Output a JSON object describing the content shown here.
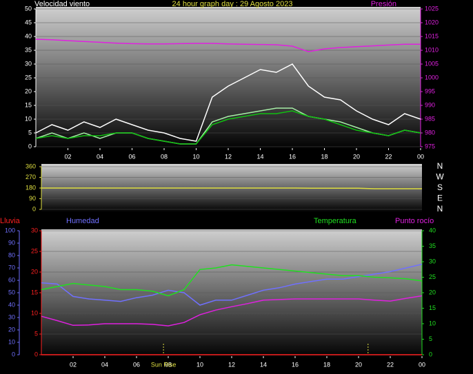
{
  "chart_data": [
    {
      "type": "line",
      "title": "Velocidad viento",
      "subtitle": "24 hour graph day : 29 Agosto 2023",
      "y2label": "Presión",
      "x": [
        0,
        1,
        2,
        3,
        4,
        5,
        6,
        7,
        8,
        9,
        10,
        11,
        12,
        13,
        14,
        15,
        16,
        17,
        18,
        19,
        20,
        21,
        22,
        23,
        24
      ],
      "xlim": [
        0,
        24
      ],
      "xticks": [
        {
          "value": 2,
          "label": "02"
        },
        {
          "value": 4,
          "label": "04"
        },
        {
          "value": 6,
          "label": "06"
        },
        {
          "value": 8,
          "label": "08"
        },
        10,
        12,
        14,
        16,
        18,
        20,
        22,
        {
          "value": 24,
          "label": "00"
        }
      ],
      "ylim": [
        0,
        50
      ],
      "yticks": [
        0,
        5,
        10,
        15,
        20,
        25,
        30,
        35,
        40,
        45,
        50
      ],
      "y2lim": [
        975,
        1025
      ],
      "y2ticks": [
        975,
        980,
        985,
        990,
        995,
        1000,
        1005,
        1010,
        1015,
        1020,
        1025
      ],
      "grid": true,
      "series": [
        {
          "color": "#ffffff",
          "values": [
            5,
            8,
            6,
            9,
            7,
            10,
            8,
            6,
            5,
            3,
            2,
            18,
            22,
            25,
            28,
            27,
            30,
            22,
            18,
            17,
            13,
            10,
            8,
            12,
            10
          ]
        },
        {
          "color": "#a8f0a8",
          "values": [
            3,
            5,
            3,
            5,
            3,
            5,
            5,
            3,
            2,
            1,
            1,
            9,
            11,
            12,
            13,
            14,
            14,
            11,
            10,
            9,
            7,
            5,
            4,
            6,
            5
          ]
        },
        {
          "color": "#10c010",
          "values": [
            3,
            4,
            3,
            4,
            4,
            5,
            5,
            3,
            2,
            1,
            1,
            8,
            10,
            11,
            12,
            12,
            13,
            11,
            10,
            8,
            6,
            5,
            4,
            6,
            5
          ]
        },
        {
          "color": "#e020e0",
          "axis": "y2",
          "values": [
            1014,
            1013.8,
            1013.5,
            1013.2,
            1012.9,
            1012.6,
            1012.4,
            1012.3,
            1012.3,
            1012.4,
            1012.5,
            1012.5,
            1012.3,
            1012.2,
            1012.1,
            1012,
            1011.5,
            1009.5,
            1010.5,
            1011,
            1011.3,
            1011.6,
            1011.9,
            1012.2,
            1012.2
          ]
        }
      ]
    },
    {
      "type": "line",
      "x": [
        0,
        1,
        2,
        3,
        4,
        5,
        6,
        7,
        8,
        9,
        10,
        11,
        12,
        13,
        14,
        15,
        16,
        17,
        18,
        19,
        20,
        21,
        22,
        23,
        24
      ],
      "xlim": [
        0,
        24
      ],
      "ylim": [
        0,
        360
      ],
      "yticks": [
        0,
        90,
        180,
        270,
        360
      ],
      "y2lim": [
        0,
        360
      ],
      "y2ticks": [
        {
          "value": 360,
          "label": "N"
        },
        {
          "value": 270,
          "label": "W"
        },
        {
          "value": 180,
          "label": "S"
        },
        {
          "value": 90,
          "label": "E"
        },
        {
          "value": 0,
          "label": "N"
        }
      ],
      "grid": true,
      "series": [
        {
          "color": "#e0e040",
          "values": [
            180,
            180,
            180,
            180,
            180,
            180,
            180,
            180,
            180,
            180,
            180,
            180,
            180,
            180,
            180,
            180,
            180,
            178,
            178,
            178,
            178,
            174,
            174,
            174,
            174
          ]
        }
      ]
    },
    {
      "type": "line",
      "x": [
        0,
        1,
        2,
        3,
        4,
        5,
        6,
        7,
        8,
        9,
        10,
        11,
        12,
        13,
        14,
        15,
        16,
        17,
        18,
        19,
        20,
        21,
        22,
        23,
        24
      ],
      "xlim": [
        0,
        24
      ],
      "xticks": [
        {
          "value": 2,
          "label": "02"
        },
        {
          "value": 4,
          "label": "04"
        },
        {
          "value": 6,
          "label": "06"
        },
        {
          "value": 8,
          "label": "08"
        },
        10,
        12,
        14,
        16,
        18,
        20,
        22,
        {
          "value": 24,
          "label": "00"
        }
      ],
      "ylim": [
        0,
        30
      ],
      "yticks": [
        0,
        5,
        10,
        15,
        20,
        25,
        30
      ],
      "y2lim": [
        0,
        40
      ],
      "y2ticks": [
        0,
        5,
        10,
        15,
        20,
        25,
        30,
        35,
        40
      ],
      "y3lim": [
        0,
        100
      ],
      "y3ticks": [
        0,
        10,
        20,
        30,
        40,
        50,
        60,
        70,
        80,
        90,
        100
      ],
      "grid": true,
      "markers": [
        {
          "x": 7.7,
          "label": "Sun Rise"
        },
        {
          "x": 20.6
        }
      ],
      "series": [
        {
          "name": "Lluvia",
          "color": "#ff2020",
          "values": [
            0,
            0,
            0,
            0,
            0,
            0,
            0,
            0,
            0,
            0,
            0,
            0,
            0,
            0,
            0,
            0,
            0,
            0,
            0,
            0,
            0,
            0,
            0,
            0,
            0
          ]
        },
        {
          "name": "Humedad",
          "color": "#7070ff",
          "axis": "y3",
          "values": [
            58,
            57,
            47,
            45,
            44,
            43,
            46,
            48,
            52,
            50,
            40,
            44,
            44,
            48,
            52,
            54,
            57,
            59,
            61,
            61,
            63,
            65,
            67,
            70,
            73
          ]
        },
        {
          "name": "Temperatura",
          "color": "#20e020",
          "axis": "y2",
          "values": [
            21,
            22,
            23,
            22.5,
            22,
            21,
            21,
            20.5,
            19,
            21,
            27.5,
            28,
            29,
            28.5,
            28,
            27.5,
            27,
            26.5,
            26,
            25.5,
            25.5,
            25,
            24.8,
            24.5,
            23.8
          ]
        },
        {
          "name": "Punto rocío",
          "color": "#e020e0",
          "axis": "y2",
          "values": [
            12.4,
            11,
            9.5,
            9.6,
            10,
            10,
            10,
            9.8,
            9.3,
            10.4,
            12.9,
            14.4,
            15.5,
            16.5,
            17.6,
            17.8,
            18,
            18,
            18,
            18,
            18,
            17.6,
            17.3,
            18.2,
            19
          ]
        }
      ]
    }
  ]
}
